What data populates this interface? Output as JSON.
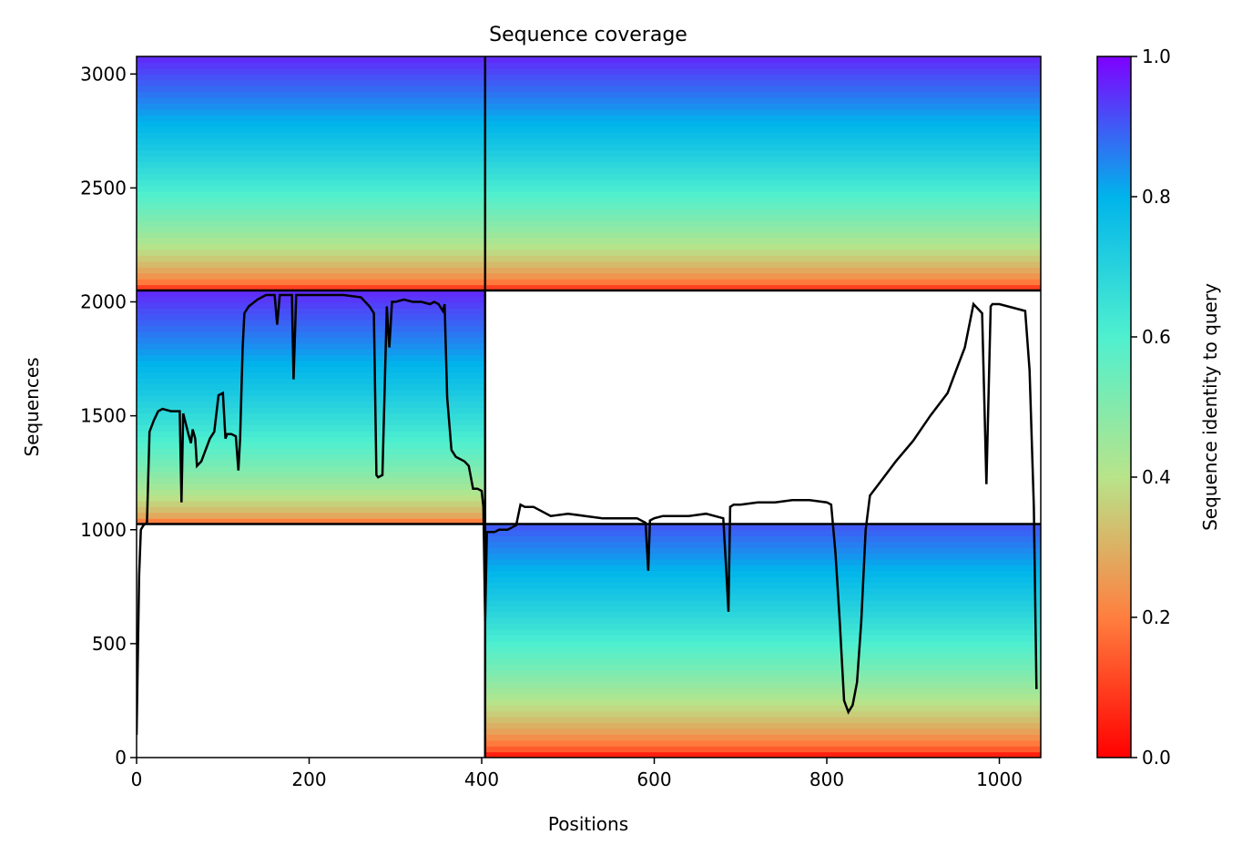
{
  "chart_data": {
    "type": "heatmap",
    "title": "Sequence coverage",
    "xlabel": "Positions",
    "ylabel": "Sequences",
    "xlim": [
      0,
      1048
    ],
    "ylim": [
      0,
      3077
    ],
    "xticks": [
      0,
      200,
      400,
      600,
      800,
      1000
    ],
    "yticks": [
      0,
      500,
      1000,
      1500,
      2000,
      2500,
      3000
    ],
    "colorbar": {
      "label": "Sequence identity to query",
      "range": [
        0.0,
        1.0
      ],
      "ticks": [
        0.0,
        0.2,
        0.4,
        0.6,
        0.8,
        1.0
      ],
      "colormap": "rainbow_r",
      "colors": [
        "#ff0000",
        "#ff7f3f",
        "#b8e48a",
        "#4ff0cf",
        "#00b4eb",
        "#7f00ff"
      ]
    },
    "grid": false,
    "block_boundaries": {
      "x": [
        404
      ],
      "y": [
        1025,
        2050
      ]
    },
    "blocks": [
      {
        "name": "chain-A-row-3",
        "x": [
          0,
          404
        ],
        "y": [
          2050,
          3077
        ],
        "identity_top": 0.95,
        "identity_bottom": 0.1
      },
      {
        "name": "chain-B-row-3",
        "x": [
          404,
          1048
        ],
        "y": [
          2050,
          3077
        ],
        "identity_top": 0.95,
        "identity_bottom": 0.1
      },
      {
        "name": "chain-A-row-2",
        "x": [
          0,
          404
        ],
        "y": [
          1025,
          2050
        ],
        "identity_top": 0.95,
        "identity_bottom": 0.2
      },
      {
        "name": "chain-B-row-1",
        "x": [
          404,
          1048
        ],
        "y": [
          0,
          1025
        ],
        "identity_top": 0.9,
        "identity_bottom": 0.05
      }
    ],
    "coverage_line": {
      "x": [
        0,
        3,
        5,
        8,
        12,
        15,
        20,
        25,
        30,
        40,
        50,
        52,
        54,
        56,
        60,
        63,
        65,
        68,
        70,
        75,
        80,
        85,
        90,
        95,
        100,
        103,
        105,
        110,
        115,
        118,
        120,
        123,
        125,
        130,
        140,
        150,
        155,
        160,
        163,
        166,
        170,
        175,
        180,
        182,
        185,
        190,
        200,
        220,
        240,
        260,
        270,
        275,
        278,
        280,
        285,
        290,
        293,
        296,
        300,
        310,
        320,
        330,
        340,
        345,
        350,
        355,
        357,
        360,
        365,
        370,
        375,
        380,
        385,
        390,
        395,
        400,
        402,
        404,
        406,
        410,
        415,
        420,
        430,
        440,
        445,
        450,
        460,
        480,
        500,
        520,
        540,
        560,
        580,
        590,
        593,
        595,
        600,
        610,
        620,
        640,
        660,
        680,
        683,
        686,
        688,
        692,
        700,
        720,
        740,
        760,
        780,
        800,
        805,
        810,
        815,
        820,
        825,
        830,
        835,
        840,
        845,
        850,
        860,
        880,
        900,
        920,
        940,
        950,
        960,
        970,
        980,
        985,
        990,
        992,
        995,
        1000,
        1020,
        1030,
        1035,
        1040,
        1043,
        1045,
        1048
      ],
      "y": [
        100,
        800,
        1000,
        1020,
        1030,
        1430,
        1480,
        1520,
        1530,
        1520,
        1520,
        1120,
        1510,
        1480,
        1420,
        1380,
        1440,
        1400,
        1280,
        1300,
        1350,
        1400,
        1430,
        1590,
        1600,
        1400,
        1420,
        1420,
        1410,
        1260,
        1400,
        1800,
        1950,
        1980,
        2010,
        2030,
        2030,
        2030,
        1900,
        2030,
        2030,
        2030,
        2030,
        1660,
        2030,
        2030,
        2030,
        2030,
        2030,
        2020,
        1980,
        1950,
        1240,
        1230,
        1240,
        1980,
        1800,
        2000,
        2000,
        2010,
        2000,
        2000,
        1990,
        2000,
        1990,
        1960,
        1990,
        1580,
        1350,
        1320,
        1310,
        1300,
        1280,
        1180,
        1180,
        1170,
        1100,
        600,
        990,
        990,
        990,
        1000,
        1000,
        1020,
        1110,
        1100,
        1100,
        1060,
        1070,
        1060,
        1050,
        1050,
        1050,
        1030,
        820,
        1040,
        1050,
        1060,
        1060,
        1060,
        1070,
        1050,
        850,
        640,
        1100,
        1110,
        1110,
        1120,
        1120,
        1130,
        1130,
        1120,
        1110,
        900,
        600,
        250,
        200,
        230,
        330,
        600,
        1000,
        1150,
        1200,
        1300,
        1390,
        1500,
        1600,
        1700,
        1800,
        1990,
        1950,
        1200,
        1980,
        1990,
        1990,
        1990,
        1970,
        1960,
        1700,
        1100,
        300
      ]
    }
  }
}
